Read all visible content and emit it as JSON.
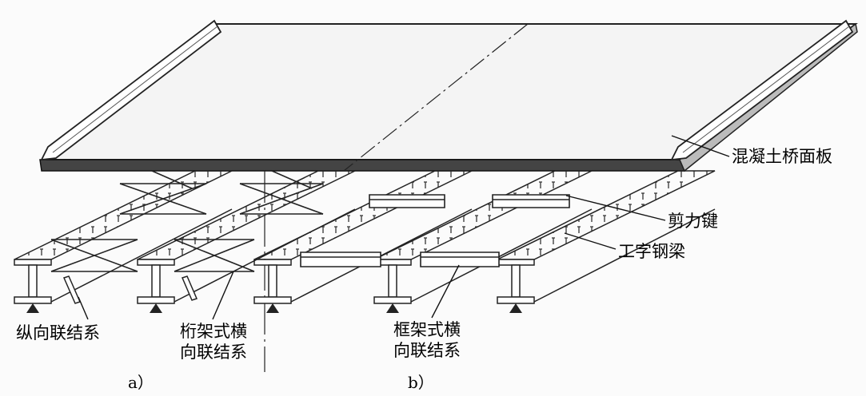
{
  "labels": {
    "deck_slab": "混凝土桥面板",
    "shear_connector": "剪力键",
    "i_beam": "工字钢梁",
    "longitudinal_bracing": "纵向联结系",
    "truss_cross_bracing": [
      "桁架式横",
      "向联结系"
    ],
    "frame_cross_bracing": [
      "框架式横",
      "向联结系"
    ],
    "part_a": "a）",
    "part_b": "b）"
  }
}
